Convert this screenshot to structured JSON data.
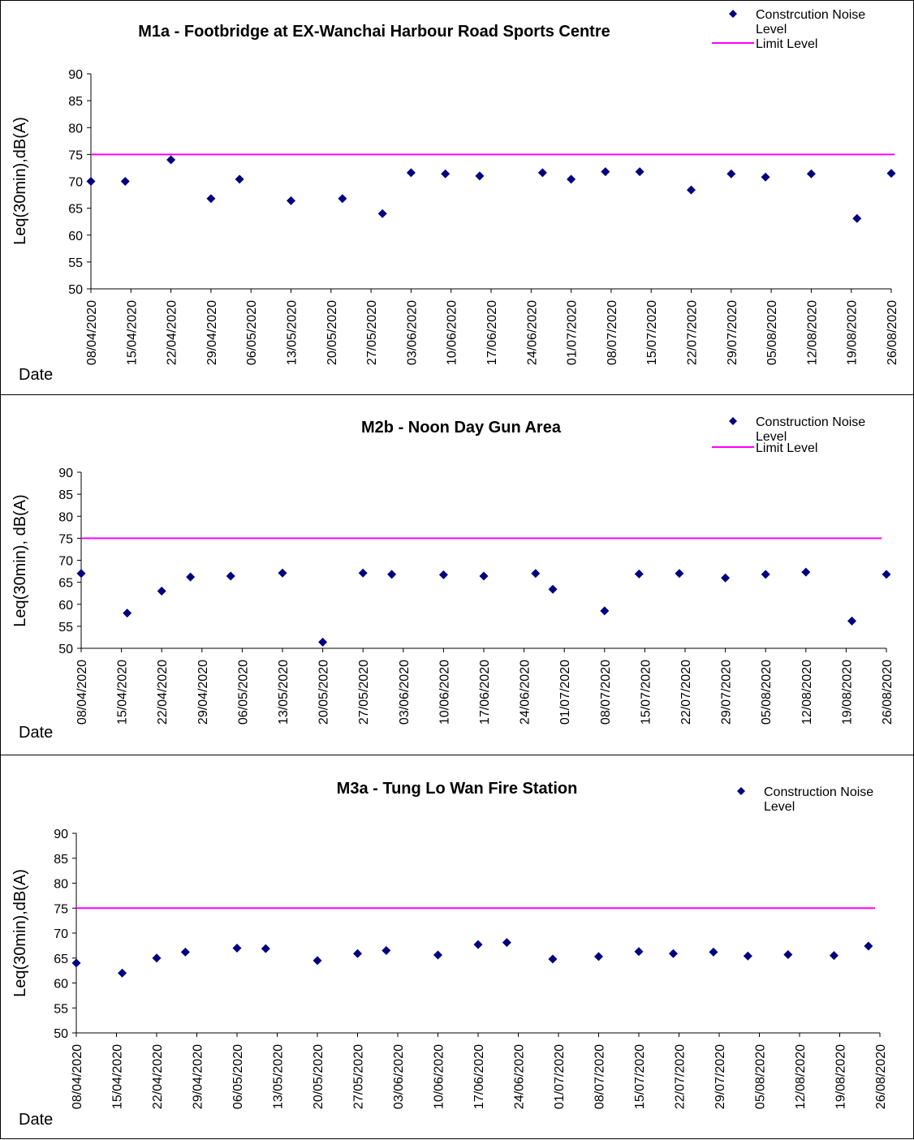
{
  "colors": {
    "marker": "#00007e",
    "limit": "#ff00ff",
    "axis": "#000000"
  },
  "chart_data": [
    {
      "type": "scatter",
      "title": "M1a - Footbridge at EX-Wanchai Harbour Road Sports Centre",
      "xlabel": "Date",
      "ylabel": "Leq(30min),dB(A)",
      "ylim": [
        50,
        90
      ],
      "yticks": [
        50,
        55,
        60,
        65,
        70,
        75,
        80,
        85,
        90
      ],
      "xlim": [
        "2020-04-08",
        "2020-08-26"
      ],
      "xticks": [
        "08/04/2020",
        "15/04/2020",
        "22/04/2020",
        "29/04/2020",
        "06/05/2020",
        "13/05/2020",
        "20/05/2020",
        "27/05/2020",
        "03/06/2020",
        "10/06/2020",
        "17/06/2020",
        "24/06/2020",
        "01/07/2020",
        "08/07/2020",
        "15/07/2020",
        "22/07/2020",
        "29/07/2020",
        "05/08/2020",
        "12/08/2020",
        "19/08/2020",
        "26/08/2020"
      ],
      "legend": [
        "Constrcution Noise Level",
        "Limit Level"
      ],
      "limit": 75,
      "series": [
        {
          "name": "Constrcution Noise Level",
          "x": [
            "2020-04-08",
            "2020-04-14",
            "2020-04-22",
            "2020-04-29",
            "2020-05-04",
            "2020-05-13",
            "2020-05-22",
            "2020-05-29",
            "2020-06-03",
            "2020-06-09",
            "2020-06-15",
            "2020-06-26",
            "2020-07-01",
            "2020-07-07",
            "2020-07-13",
            "2020-07-22",
            "2020-07-29",
            "2020-08-04",
            "2020-08-12",
            "2020-08-20",
            "2020-08-26"
          ],
          "y": [
            70,
            70,
            74,
            66.8,
            70.4,
            66.4,
            66.8,
            64,
            71.6,
            71.4,
            71,
            71.6,
            70.4,
            71.8,
            71.8,
            68.4,
            71.4,
            70.8,
            71.4,
            63.1,
            71.5
          ]
        }
      ]
    },
    {
      "type": "scatter",
      "title": "M2b - Noon Day Gun Area",
      "xlabel": "Date",
      "ylabel": "Leq(30min), dB(A)",
      "ylim": [
        50,
        90
      ],
      "yticks": [
        50,
        55,
        60,
        65,
        70,
        75,
        80,
        85,
        90
      ],
      "xlim": [
        "2020-04-08",
        "2020-08-26"
      ],
      "xticks": [
        "08/04/2020",
        "15/04/2020",
        "22/04/2020",
        "29/04/2020",
        "06/05/2020",
        "13/05/2020",
        "20/05/2020",
        "27/05/2020",
        "03/06/2020",
        "10/06/2020",
        "17/06/2020",
        "24/06/2020",
        "01/07/2020",
        "08/07/2020",
        "15/07/2020",
        "22/07/2020",
        "29/07/2020",
        "05/08/2020",
        "12/08/2020",
        "19/08/2020",
        "26/08/2020"
      ],
      "legend": [
        "Construction Noise Level",
        "Limit Level"
      ],
      "limit": 75,
      "series": [
        {
          "name": "Construction Noise Level",
          "x": [
            "2020-04-08",
            "2020-04-16",
            "2020-04-22",
            "2020-04-27",
            "2020-05-04",
            "2020-05-13",
            "2020-05-20",
            "2020-05-27",
            "2020-06-01",
            "2020-06-10",
            "2020-06-17",
            "2020-06-26",
            "2020-06-29",
            "2020-07-08",
            "2020-07-14",
            "2020-07-21",
            "2020-07-29",
            "2020-08-05",
            "2020-08-12",
            "2020-08-20",
            "2020-08-26"
          ],
          "y": [
            67,
            58,
            63,
            66.2,
            66.4,
            67.1,
            51.4,
            67.1,
            66.8,
            66.7,
            66.4,
            67,
            63.4,
            58.5,
            66.9,
            67,
            66,
            66.8,
            67.3,
            56.2,
            66.8
          ]
        }
      ]
    },
    {
      "type": "scatter",
      "title": "M3a - Tung Lo Wan Fire Station",
      "xlabel": "Date",
      "ylabel": "Leq(30min),dB(A)",
      "ylim": [
        50,
        90
      ],
      "yticks": [
        50,
        55,
        60,
        65,
        70,
        75,
        80,
        85,
        90
      ],
      "xlim": [
        "2020-04-08",
        "2020-08-26"
      ],
      "xticks": [
        "08/04/2020",
        "15/04/2020",
        "22/04/2020",
        "29/04/2020",
        "06/05/2020",
        "13/05/2020",
        "20/05/2020",
        "27/05/2020",
        "03/06/2020",
        "10/06/2020",
        "17/06/2020",
        "24/06/2020",
        "01/07/2020",
        "08/07/2020",
        "15/07/2020",
        "22/07/2020",
        "29/07/2020",
        "05/08/2020",
        "12/08/2020",
        "19/08/2020",
        "26/08/2020"
      ],
      "legend": [
        "Construction Noise Level"
      ],
      "limit": 75,
      "series": [
        {
          "name": "Construction Noise Level",
          "x": [
            "2020-04-08",
            "2020-04-16",
            "2020-04-22",
            "2020-04-27",
            "2020-05-06",
            "2020-05-11",
            "2020-05-20",
            "2020-05-27",
            "2020-06-01",
            "2020-06-10",
            "2020-06-17",
            "2020-06-22",
            "2020-06-30",
            "2020-07-08",
            "2020-07-15",
            "2020-07-21",
            "2020-07-28",
            "2020-08-03",
            "2020-08-10",
            "2020-08-18",
            "2020-08-24"
          ],
          "y": [
            64,
            62,
            65,
            66.2,
            67,
            66.9,
            64.5,
            65.9,
            66.5,
            65.6,
            67.7,
            68.1,
            64.8,
            65.3,
            66.3,
            65.9,
            66.2,
            65.4,
            65.7,
            65.5,
            67.4
          ]
        }
      ]
    }
  ]
}
